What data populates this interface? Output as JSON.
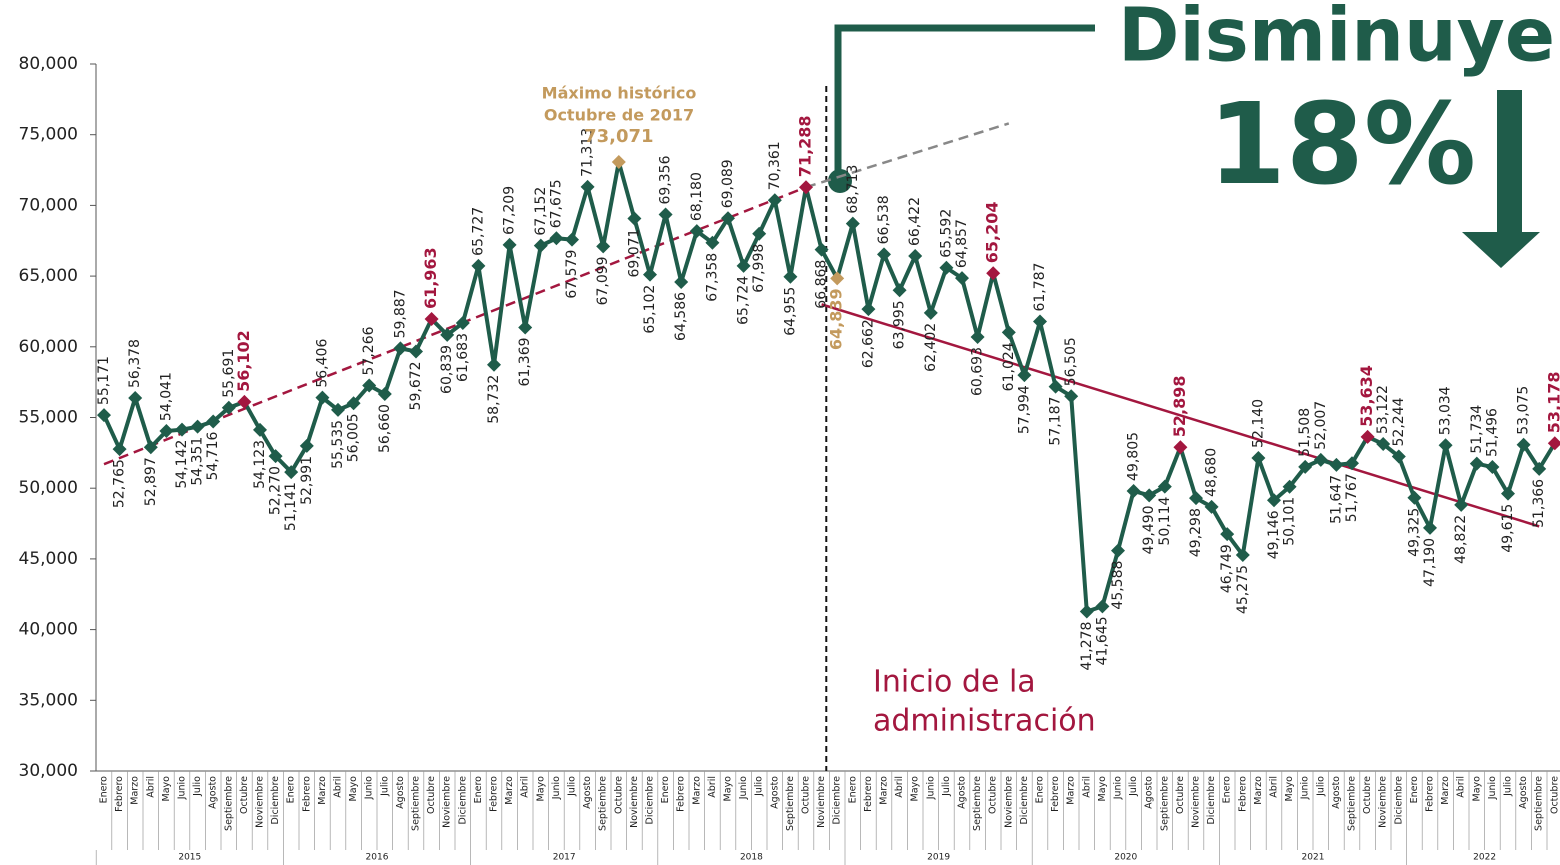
{
  "chart_data": {
    "type": "line",
    "color": "#1f5c4a",
    "categories": [
      "Enero",
      "Febrero",
      "Marzo",
      "Abril",
      "Mayo",
      "Junio",
      "Julio",
      "Agosto",
      "Septiembre",
      "Octubre",
      "Noviembre",
      "Diciembre",
      "Enero",
      "Febrero",
      "Marzo",
      "Abril",
      "Mayo",
      "Junio",
      "Julio",
      "Agosto",
      "Septiembre",
      "Octubre",
      "Noviembre",
      "Diciembre",
      "Enero",
      "Febrero",
      "Marzo",
      "Abril",
      "Mayo",
      "Junio",
      "Julio",
      "Agosto",
      "Septiembre",
      "Octubre",
      "Noviembre",
      "Diciembre",
      "Enero",
      "Febrero",
      "Marzo",
      "Abril",
      "Mayo",
      "Junio",
      "Julio",
      "Agosto",
      "Septiembre",
      "Octubre",
      "Noviembre",
      "Diciembre",
      "Enero",
      "Febrero",
      "Marzo",
      "Abril",
      "Mayo",
      "Junio",
      "Julio",
      "Agosto",
      "Septiembre",
      "Octubre",
      "Noviembre",
      "Diciembre",
      "Enero",
      "Febrero",
      "Marzo",
      "Abril",
      "Mayo",
      "Junio",
      "Julio",
      "Agosto",
      "Septiembre",
      "Octubre",
      "Noviembre",
      "Diciembre",
      "Enero",
      "Febrero",
      "Marzo",
      "Abril",
      "Mayo",
      "Junio",
      "Julio",
      "Agosto",
      "Septiembre",
      "Octubre",
      "Noviembre",
      "Diciembre",
      "Enero",
      "Febrero",
      "Marzo",
      "Abril",
      "Mayo",
      "Junio",
      "Julio",
      "Agosto",
      "Septiembre",
      "Octubre"
    ],
    "years": [
      "2015",
      "2016",
      "2017",
      "2018",
      "2019",
      "2020",
      "2021",
      "2022"
    ],
    "values": [
      55171,
      52765,
      56378,
      52897,
      54041,
      54142,
      54351,
      54716,
      55691,
      56102,
      54123,
      52270,
      51141,
      52991,
      56406,
      55535,
      56005,
      57266,
      56660,
      59887,
      59672,
      61963,
      60839,
      61683,
      65727,
      58732,
      67209,
      61369,
      67152,
      67675,
      67579,
      71313,
      67099,
      73071,
      69071,
      65102,
      69356,
      64586,
      68180,
      67358,
      69089,
      65724,
      67998,
      70361,
      64955,
      71288,
      66868,
      64839,
      68713,
      62662,
      66538,
      63995,
      66422,
      62402,
      65592,
      64857,
      60693,
      65204,
      61024,
      57994,
      61787,
      57187,
      56505,
      41278,
      41645,
      45588,
      49805,
      49490,
      50114,
      52898,
      49298,
      48680,
      46749,
      45275,
      52140,
      49146,
      50101,
      51508,
      52007,
      51647,
      51767,
      53634,
      53122,
      52244,
      49325,
      47190,
      53034,
      48822,
      51734,
      51496,
      49615,
      53075,
      51366,
      53178
    ],
    "value_labels": [
      "55,171",
      "52,765",
      "56,378",
      "52,897",
      "54,041",
      "54,142",
      "54,351",
      "54,716",
      "55,691",
      "56,102",
      "54,123",
      "52,270",
      "51,141",
      "52,991",
      "56,406",
      "55,535",
      "56,005",
      "57,266",
      "56,660",
      "59,887",
      "59,672",
      "61,963",
      "60,839",
      "61,683",
      "65,727",
      "58,732",
      "67,209",
      "61,369",
      "67,152",
      "67,675",
      "67,579",
      "71,313",
      "67,099",
      "73,071",
      "69,071",
      "65,102",
      "69,356",
      "64,586",
      "68,180",
      "67,358",
      "69,089",
      "65,724",
      "67,998",
      "70,361",
      "64,955",
      "71,288",
      "66,868",
      "64,839",
      "68,713",
      "62,662",
      "66,538",
      "63,995",
      "66,422",
      "62,402",
      "65,592",
      "64,857",
      "60,693",
      "65,204",
      "61,024",
      "57,994",
      "61,787",
      "57,187",
      "56,505",
      "41,278",
      "41,645",
      "45,588",
      "49,805",
      "49,490",
      "50,114",
      "52,898",
      "49,298",
      "48,680",
      "46,749",
      "45,275",
      "52,140",
      "49,146",
      "50,101",
      "51,508",
      "52,007",
      "51,647",
      "51,767",
      "53,634",
      "53,122",
      "52,244",
      "49,325",
      "47,190",
      "53,034",
      "48,822",
      "51,734",
      "51,496",
      "49,615",
      "53,075",
      "51,366",
      "53,178"
    ],
    "point_colors": [
      "#1f5c4a",
      "#1f5c4a",
      "#1f5c4a",
      "#1f5c4a",
      "#1f5c4a",
      "#1f5c4a",
      "#1f5c4a",
      "#1f5c4a",
      "#1f5c4a",
      "#a3173f",
      "#1f5c4a",
      "#1f5c4a",
      "#1f5c4a",
      "#1f5c4a",
      "#1f5c4a",
      "#1f5c4a",
      "#1f5c4a",
      "#1f5c4a",
      "#1f5c4a",
      "#1f5c4a",
      "#1f5c4a",
      "#a3173f",
      "#1f5c4a",
      "#1f5c4a",
      "#1f5c4a",
      "#1f5c4a",
      "#1f5c4a",
      "#1f5c4a",
      "#1f5c4a",
      "#1f5c4a",
      "#1f5c4a",
      "#1f5c4a",
      "#1f5c4a",
      "#c39a5d",
      "#1f5c4a",
      "#1f5c4a",
      "#1f5c4a",
      "#1f5c4a",
      "#1f5c4a",
      "#1f5c4a",
      "#1f5c4a",
      "#1f5c4a",
      "#1f5c4a",
      "#1f5c4a",
      "#1f5c4a",
      "#a3173f",
      "#1f5c4a",
      "#c39a5d",
      "#1f5c4a",
      "#1f5c4a",
      "#1f5c4a",
      "#1f5c4a",
      "#1f5c4a",
      "#1f5c4a",
      "#1f5c4a",
      "#1f5c4a",
      "#1f5c4a",
      "#a3173f",
      "#1f5c4a",
      "#1f5c4a",
      "#1f5c4a",
      "#1f5c4a",
      "#1f5c4a",
      "#1f5c4a",
      "#1f5c4a",
      "#1f5c4a",
      "#1f5c4a",
      "#1f5c4a",
      "#1f5c4a",
      "#a3173f",
      "#1f5c4a",
      "#1f5c4a",
      "#1f5c4a",
      "#1f5c4a",
      "#1f5c4a",
      "#1f5c4a",
      "#1f5c4a",
      "#1f5c4a",
      "#1f5c4a",
      "#1f5c4a",
      "#1f5c4a",
      "#a3173f",
      "#1f5c4a",
      "#1f5c4a",
      "#1f5c4a",
      "#1f5c4a",
      "#1f5c4a",
      "#1f5c4a",
      "#1f5c4a",
      "#1f5c4a",
      "#1f5c4a",
      "#1f5c4a",
      "#1f5c4a",
      "#a3173f"
    ],
    "trends": [
      {
        "color": "#a3173f",
        "dashed": true,
        "x": [
          0,
          45
        ],
        "values": [
          51700,
          71288
        ]
      },
      {
        "color": "#888888",
        "dashed": true,
        "x": [
          45,
          58
        ],
        "values": [
          71288,
          75800
        ]
      },
      {
        "color": "#a3173f",
        "dashed": false,
        "x": [
          46,
          92
        ],
        "values": [
          63000,
          47300
        ]
      }
    ],
    "ylim": [
      30000,
      80000
    ],
    "yticks": [
      {
        "value": 30000,
        "label": "30,000"
      },
      {
        "value": 35000,
        "label": "35,000"
      },
      {
        "value": 40000,
        "label": "40,000"
      },
      {
        "value": 45000,
        "label": "45,000"
      },
      {
        "value": 50000,
        "label": "50,000"
      },
      {
        "value": 55000,
        "label": "55,000"
      },
      {
        "value": 60000,
        "label": "60,000"
      },
      {
        "value": 65000,
        "label": "65,000"
      },
      {
        "value": 70000,
        "label": "70,000"
      },
      {
        "value": 75000,
        "label": "75,000"
      },
      {
        "value": 80000,
        "label": "80,000"
      }
    ],
    "annotations": {
      "peak_line1": "Máximo histórico",
      "peak_line2": "Octubre de 2017",
      "start_line1": "Inicio de la",
      "start_line2": "administración",
      "headline": "Disminuye",
      "percent": "18%"
    }
  }
}
